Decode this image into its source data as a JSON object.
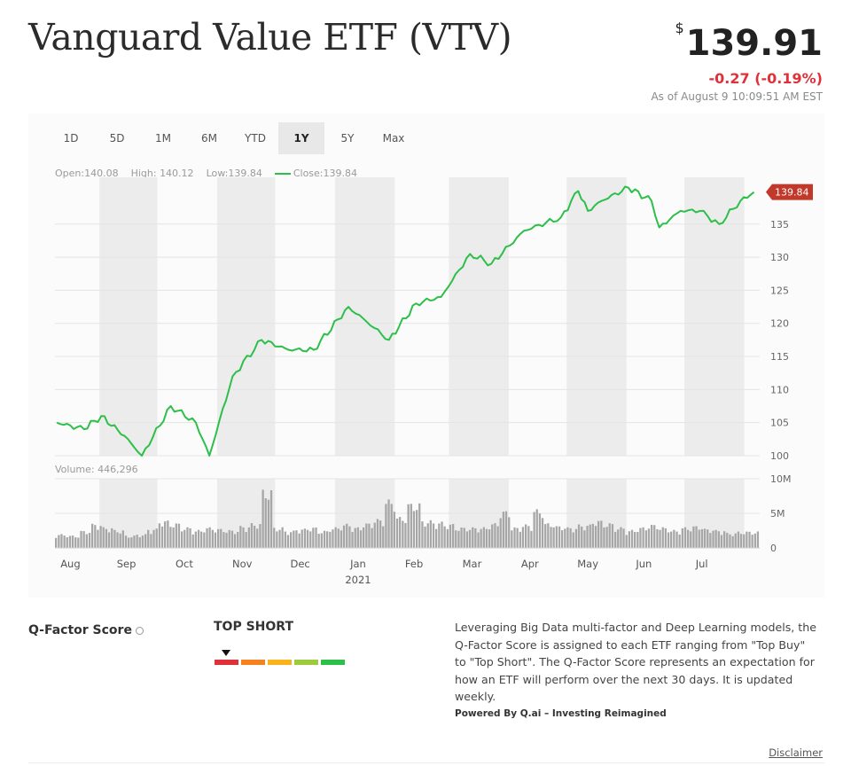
{
  "header": {
    "title": "Vanguard Value ETF (VTV)",
    "currency_symbol": "$",
    "price": "139.91",
    "change": "-0.27 (-0.19%)",
    "as_of": "As of August 9 10:09:51 AM EST"
  },
  "ranges": [
    "1D",
    "5D",
    "1M",
    "6M",
    "YTD",
    "1Y",
    "5Y",
    "Max"
  ],
  "active_range": "1Y",
  "ohlc": {
    "open": "Open:140.08",
    "high": "High: 140.12",
    "low": "Low:139.84",
    "close": "Close:139.84"
  },
  "volume_label": "Volume:",
  "volume_value": "446,296",
  "last_price_tag": "139.84",
  "colors": {
    "line": "#2dbf4a",
    "tag": "#c0392b",
    "negative": "#e0313a",
    "band": "#ececec",
    "volume_bar": "#a6a6a6"
  },
  "chart_data": [
    {
      "type": "line",
      "series": [
        {
          "name": "Close",
          "x": [
            "2020-08-10",
            "2020-08-24",
            "2020-09-02",
            "2020-09-14",
            "2020-09-23",
            "2020-10-08",
            "2020-10-21",
            "2020-10-28",
            "2020-11-09",
            "2020-11-24",
            "2020-12-08",
            "2020-12-21",
            "2021-01-08",
            "2021-01-29",
            "2021-02-12",
            "2021-02-25",
            "2021-03-12",
            "2021-03-23",
            "2021-04-09",
            "2021-04-28",
            "2021-05-07",
            "2021-05-12",
            "2021-05-19",
            "2021-06-02",
            "2021-06-14",
            "2021-06-18",
            "2021-06-29",
            "2021-07-09",
            "2021-07-19",
            "2021-07-30",
            "2021-08-06"
          ],
          "y": [
            105,
            104,
            106,
            103,
            100,
            107.5,
            105,
            100,
            112,
            117.5,
            116,
            116,
            122.5,
            117.5,
            123,
            124,
            130.5,
            129,
            134,
            136,
            140,
            137,
            138.5,
            140.5,
            138.5,
            134.5,
            137,
            137,
            135,
            138.5,
            139.84
          ]
        }
      ],
      "ylim": [
        100,
        141
      ],
      "y_ticks": [
        "100",
        "105",
        "110",
        "115",
        "120",
        "125",
        "130",
        "135"
      ],
      "x_ticks": [
        "Aug",
        "Sep",
        "Oct",
        "Nov",
        "Dec",
        "Jan",
        "Feb",
        "Mar",
        "Apr",
        "May",
        "Jun",
        "Jul"
      ],
      "x_year_label": "2021",
      "grid": true,
      "shaded_months": [
        "Sep",
        "Nov",
        "Jan",
        "Mar",
        "May",
        "Jul"
      ]
    },
    {
      "type": "bar",
      "title": "Volume",
      "ylim": [
        0,
        10000000
      ],
      "y_ticks": [
        "0",
        "5M",
        "10M"
      ],
      "weekly_volume": [
        2000000,
        1800000,
        2500000,
        3500000,
        3000000,
        2600000,
        1800000,
        2000000,
        2800000,
        4000000,
        3600000,
        3000000,
        2600000,
        3000000,
        2800000,
        2600000,
        3200000,
        3600000,
        8500000,
        3000000,
        2500000,
        2800000,
        3000000,
        2500000,
        3000000,
        3500000,
        3000000,
        3600000,
        4200000,
        7000000,
        4500000,
        6500000,
        4000000,
        3800000,
        3500000,
        3000000,
        3000000,
        3000000,
        3600000,
        5400000,
        3000000,
        3400000,
        5600000,
        3600000,
        3200000,
        3000000,
        3400000,
        4000000,
        3600000,
        3000000,
        2600000,
        3000000,
        3400000,
        3000000,
        2600000,
        3000000,
        3200000,
        2800000,
        2600000,
        2200000,
        2400000,
        2400000
      ]
    }
  ],
  "qfactor": {
    "label": "Q-Factor Score",
    "rating": "TOP SHORT",
    "scale_colors": [
      "#e0313a",
      "#f5821f",
      "#f9b31c",
      "#9ccc3c",
      "#2dbf4a"
    ],
    "description": "Leveraging Big Data multi-factor and Deep Learning models, the Q-Factor Score is assigned to each ETF ranging from \"Top Buy\" to \"Top Short\". The Q-Factor Score represents an expectation for how an ETF will perform over the next 30 days. It is updated weekly.",
    "powered_by": "Powered By Q.ai – Investing Reimagined"
  },
  "disclaimer": "Disclaimer"
}
